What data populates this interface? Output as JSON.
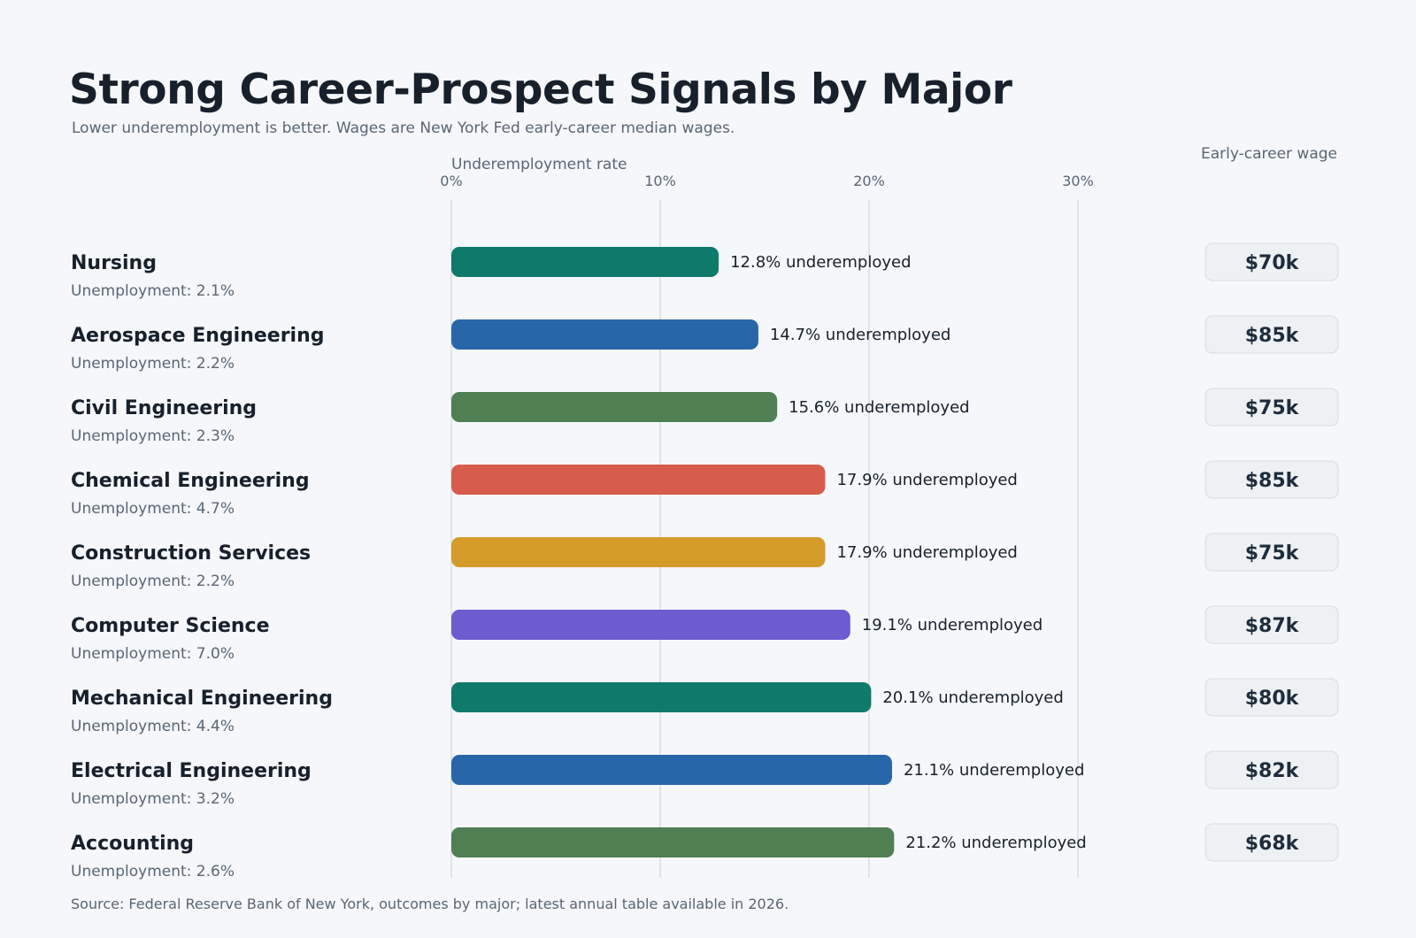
{
  "header": {
    "title": "Strong Career-Prospect Signals by Major",
    "subtitle": "Lower underemployment is better. Wages are New York Fed early-career median wages.",
    "wage_column_label": "Early-career wage"
  },
  "footer": {
    "source": "Source: Federal Reserve Bank of New York, outcomes by major; latest annual table available in 2026."
  },
  "chart_data": {
    "type": "bar",
    "orientation": "horizontal",
    "xlabel": "Underemployment rate",
    "xlim": [
      0,
      30
    ],
    "x_ticks": [
      "0%",
      "10%",
      "20%",
      "30%"
    ],
    "grid": true,
    "value_label_suffix": " underemployed",
    "colors": {
      "teal": "#0f7a6c",
      "blue": "#2866aa",
      "green": "#4f7f52",
      "red": "#d65c4b",
      "gold": "#d49b2a",
      "purple": "#6b5ccf",
      "grid": "#d8dde3",
      "wage_badge_bg": "#eef1f4",
      "wage_badge_border": "#d8dde3"
    },
    "categories": [
      {
        "major": "Nursing",
        "underemployment": 12.8,
        "value_label": "12.8%",
        "unemployment": "Unemployment: 2.1%",
        "wage": "$70k",
        "color": "#0f7a6c"
      },
      {
        "major": "Aerospace Engineering",
        "underemployment": 14.7,
        "value_label": "14.7%",
        "unemployment": "Unemployment: 2.2%",
        "wage": "$85k",
        "color": "#2866aa"
      },
      {
        "major": "Civil Engineering",
        "underemployment": 15.6,
        "value_label": "15.6%",
        "unemployment": "Unemployment: 2.3%",
        "wage": "$75k",
        "color": "#4f7f52"
      },
      {
        "major": "Chemical Engineering",
        "underemployment": 17.9,
        "value_label": "17.9%",
        "unemployment": "Unemployment: 4.7%",
        "wage": "$85k",
        "color": "#d65c4b"
      },
      {
        "major": "Construction Services",
        "underemployment": 17.9,
        "value_label": "17.9%",
        "unemployment": "Unemployment: 2.2%",
        "wage": "$75k",
        "color": "#d49b2a"
      },
      {
        "major": "Computer Science",
        "underemployment": 19.1,
        "value_label": "19.1%",
        "unemployment": "Unemployment: 7.0%",
        "wage": "$87k",
        "color": "#6b5ccf"
      },
      {
        "major": "Mechanical Engineering",
        "underemployment": 20.1,
        "value_label": "20.1%",
        "unemployment": "Unemployment: 4.4%",
        "wage": "$80k",
        "color": "#0f7a6c"
      },
      {
        "major": "Electrical Engineering",
        "underemployment": 21.1,
        "value_label": "21.1%",
        "unemployment": "Unemployment: 3.2%",
        "wage": "$82k",
        "color": "#2866aa"
      },
      {
        "major": "Accounting",
        "underemployment": 21.2,
        "value_label": "21.2%",
        "unemployment": "Unemployment: 2.6%",
        "wage": "$68k",
        "color": "#4f7f52"
      }
    ]
  }
}
